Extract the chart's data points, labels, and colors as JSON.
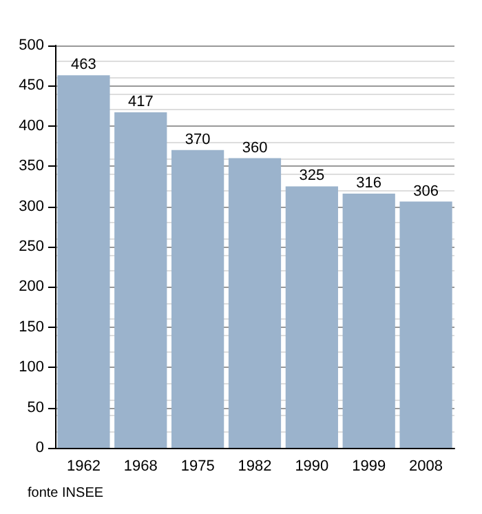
{
  "chart_data": {
    "type": "bar",
    "categories": [
      "1962",
      "1968",
      "1975",
      "1982",
      "1990",
      "1999",
      "2008"
    ],
    "values": [
      463,
      417,
      370,
      360,
      325,
      316,
      306
    ],
    "color": "#9bb3cc",
    "ylim": [
      0,
      500
    ],
    "yticks": [
      0,
      50,
      100,
      150,
      200,
      250,
      300,
      350,
      400,
      450,
      500
    ],
    "grid": "y",
    "data_labels": true,
    "annotations": [
      "fonte INSEE"
    ]
  }
}
